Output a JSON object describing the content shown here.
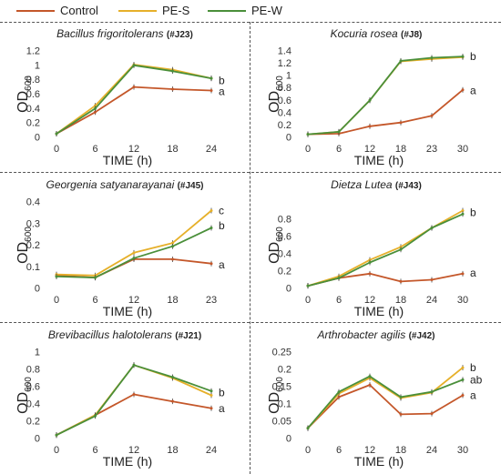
{
  "legend": [
    {
      "name": "Control",
      "color": "#c4572a"
    },
    {
      "name": "PE-S",
      "color": "#e6b02a"
    },
    {
      "name": "PE-W",
      "color": "#4a8f3a"
    }
  ],
  "chart_data": [
    {
      "type": "line",
      "title_species": "Bacillus frigoritolerans",
      "title_code": "(#J23)",
      "ylabel_main": "OD",
      "ylabel_sub": "600",
      "xlabel": "TIME (h)",
      "x": [
        "0",
        "6",
        "12",
        "18",
        "24"
      ],
      "yticks": [
        "0",
        "0.2",
        "0.4",
        "0.6",
        "0.8",
        "1",
        "1.2"
      ],
      "ylim": [
        0,
        1.2
      ],
      "series": [
        {
          "name": "Control",
          "values": [
            0.05,
            0.35,
            0.7,
            0.67,
            0.65
          ]
        },
        {
          "name": "PE-S",
          "values": [
            0.05,
            0.44,
            1.01,
            0.94,
            0.82
          ]
        },
        {
          "name": "PE-W",
          "values": [
            0.05,
            0.4,
            1.0,
            0.92,
            0.82
          ]
        }
      ],
      "group_labels": [
        {
          "text": "b",
          "value": 0.79
        },
        {
          "text": "a",
          "value": 0.64
        }
      ]
    },
    {
      "type": "line",
      "title_species": "Kocuria rosea",
      "title_code": "(#J8)",
      "ylabel_main": "OD",
      "ylabel_sub": "600",
      "xlabel": "TIME (h)",
      "x": [
        "0",
        "6",
        "12",
        "18",
        "23",
        "30"
      ],
      "yticks": [
        "0",
        "0.2",
        "0.4",
        "0.6",
        "0.8",
        "1",
        "1.2",
        "1.4"
      ],
      "ylim": [
        0,
        1.4
      ],
      "series": [
        {
          "name": "Control",
          "values": [
            0.05,
            0.06,
            0.18,
            0.24,
            0.35,
            0.77
          ]
        },
        {
          "name": "PE-S",
          "values": [
            0.05,
            0.09,
            0.6,
            1.23,
            1.27,
            1.3
          ]
        },
        {
          "name": "PE-W",
          "values": [
            0.05,
            0.09,
            0.6,
            1.24,
            1.29,
            1.31
          ]
        }
      ],
      "group_labels": [
        {
          "text": "b",
          "value": 1.31
        },
        {
          "text": "a",
          "value": 0.76
        }
      ]
    },
    {
      "type": "line",
      "title_species": "Georgenia satyanarayanai",
      "title_code": "(#J45)",
      "ylabel_main": "OD",
      "ylabel_sub": "600",
      "xlabel": "TIME (h)",
      "x": [
        "0",
        "6",
        "12",
        "18",
        "23"
      ],
      "yticks": [
        "0",
        "0.1",
        "0.2",
        "0.3",
        "0.4"
      ],
      "ylim": [
        0,
        0.4
      ],
      "series": [
        {
          "name": "Control",
          "values": [
            0.06,
            0.05,
            0.135,
            0.135,
            0.115
          ]
        },
        {
          "name": "PE-S",
          "values": [
            0.065,
            0.06,
            0.165,
            0.21,
            0.36
          ]
        },
        {
          "name": "PE-W",
          "values": [
            0.055,
            0.05,
            0.14,
            0.195,
            0.28
          ]
        }
      ],
      "group_labels": [
        {
          "text": "c",
          "value": 0.36
        },
        {
          "text": "b",
          "value": 0.29
        },
        {
          "text": "a",
          "value": 0.11
        }
      ]
    },
    {
      "type": "line",
      "title_species": "Dietza Lutea",
      "title_code": "(#J43)",
      "ylabel_main": "OD",
      "ylabel_sub": "600",
      "xlabel": "TIME (h)",
      "x": [
        "0",
        "6",
        "12",
        "18",
        "24",
        "30"
      ],
      "yticks": [
        "0",
        "0.2",
        "0.4",
        "0.6",
        "0.8"
      ],
      "ylim": [
        0,
        1.0
      ],
      "series": [
        {
          "name": "Control",
          "values": [
            0.03,
            0.12,
            0.17,
            0.08,
            0.1,
            0.17
          ]
        },
        {
          "name": "PE-S",
          "values": [
            0.03,
            0.14,
            0.33,
            0.48,
            0.7,
            0.9
          ]
        },
        {
          "name": "PE-W",
          "values": [
            0.03,
            0.12,
            0.3,
            0.45,
            0.7,
            0.86
          ]
        }
      ],
      "group_labels": [
        {
          "text": "b",
          "value": 0.88
        },
        {
          "text": "a",
          "value": 0.18
        }
      ]
    },
    {
      "type": "line",
      "title_species": "Brevibacillus halotolerans",
      "title_code": "(#J21)",
      "ylabel_main": "OD",
      "ylabel_sub": "600",
      "xlabel": "TIME (h)",
      "x": [
        "0",
        "6",
        "12",
        "18",
        "24"
      ],
      "yticks": [
        "0",
        "0.2",
        "0.4",
        "0.6",
        "0.8",
        "1"
      ],
      "ylim": [
        0,
        1.0
      ],
      "series": [
        {
          "name": "Control",
          "values": [
            0.04,
            0.27,
            0.51,
            0.43,
            0.35
          ]
        },
        {
          "name": "PE-S",
          "values": [
            0.04,
            0.27,
            0.85,
            0.7,
            0.5
          ]
        },
        {
          "name": "PE-W",
          "values": [
            0.04,
            0.26,
            0.85,
            0.71,
            0.55
          ]
        }
      ],
      "group_labels": [
        {
          "text": "b",
          "value": 0.53
        },
        {
          "text": "a",
          "value": 0.35
        }
      ]
    },
    {
      "type": "line",
      "title_species": "Arthrobacter agilis",
      "title_code": "(#J42)",
      "ylabel_main": "OD",
      "ylabel_sub": "600",
      "xlabel": "TIME (h)",
      "x": [
        "0",
        "6",
        "12",
        "18",
        "24",
        "30"
      ],
      "yticks": [
        "0",
        "0.05",
        "0.1",
        "0.15",
        "0.2",
        "0.25"
      ],
      "ylim": [
        0,
        0.25
      ],
      "series": [
        {
          "name": "Control",
          "values": [
            0.03,
            0.12,
            0.155,
            0.07,
            0.072,
            0.125
          ]
        },
        {
          "name": "PE-S",
          "values": [
            0.03,
            0.13,
            0.175,
            0.117,
            0.133,
            0.205
          ]
        },
        {
          "name": "PE-W",
          "values": [
            0.03,
            0.135,
            0.18,
            0.12,
            0.135,
            0.17
          ]
        }
      ],
      "group_labels": [
        {
          "text": "b",
          "value": 0.205
        },
        {
          "text": "ab",
          "value": 0.17
        },
        {
          "text": "a",
          "value": 0.125
        }
      ]
    }
  ]
}
